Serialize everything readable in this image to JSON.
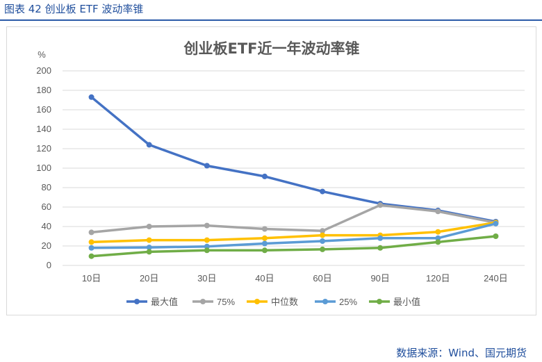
{
  "header": {
    "caption": "图表 42  创业板 ETF 波动率锥"
  },
  "footer": {
    "source": "数据来源：Wind、国元期货"
  },
  "colors": {
    "max": "#4472c4",
    "p75": "#a5a5a5",
    "median": "#ffc000",
    "p25": "#5b9bd5",
    "min": "#70ad47",
    "grid": "#d9d9d9",
    "text": "#595959",
    "caption": "#1f4e9c"
  },
  "chart_data": {
    "type": "line",
    "title": "创业板ETF近一年波动率锥",
    "ylabel": "%",
    "xlabel": "",
    "ylim": [
      0,
      200
    ],
    "yticks": [
      "0",
      "20",
      "40",
      "60",
      "80",
      "100",
      "120",
      "140",
      "160",
      "180",
      "200"
    ],
    "grid": true,
    "legend_position": "bottom",
    "categories": [
      "10日",
      "20日",
      "30日",
      "40日",
      "60日",
      "90日",
      "120日",
      "240日"
    ],
    "series": [
      {
        "key": "max",
        "name": "最大值",
        "values": [
          173,
          124,
          102.5,
          91.5,
          76,
          63.5,
          56.5,
          45
        ]
      },
      {
        "key": "p75",
        "name": "75%",
        "values": [
          34,
          40,
          41,
          37.5,
          35.5,
          62,
          55.5,
          44
        ]
      },
      {
        "key": "median",
        "name": "中位数",
        "values": [
          24,
          26,
          26,
          28,
          31,
          31,
          34.5,
          44
        ]
      },
      {
        "key": "p25",
        "name": "25%",
        "values": [
          18,
          18.5,
          19.5,
          22.5,
          25,
          28,
          28,
          43
        ]
      },
      {
        "key": "min",
        "name": "最小值",
        "values": [
          9.5,
          14,
          15.5,
          15.5,
          16.5,
          18,
          24,
          30
        ]
      }
    ]
  }
}
